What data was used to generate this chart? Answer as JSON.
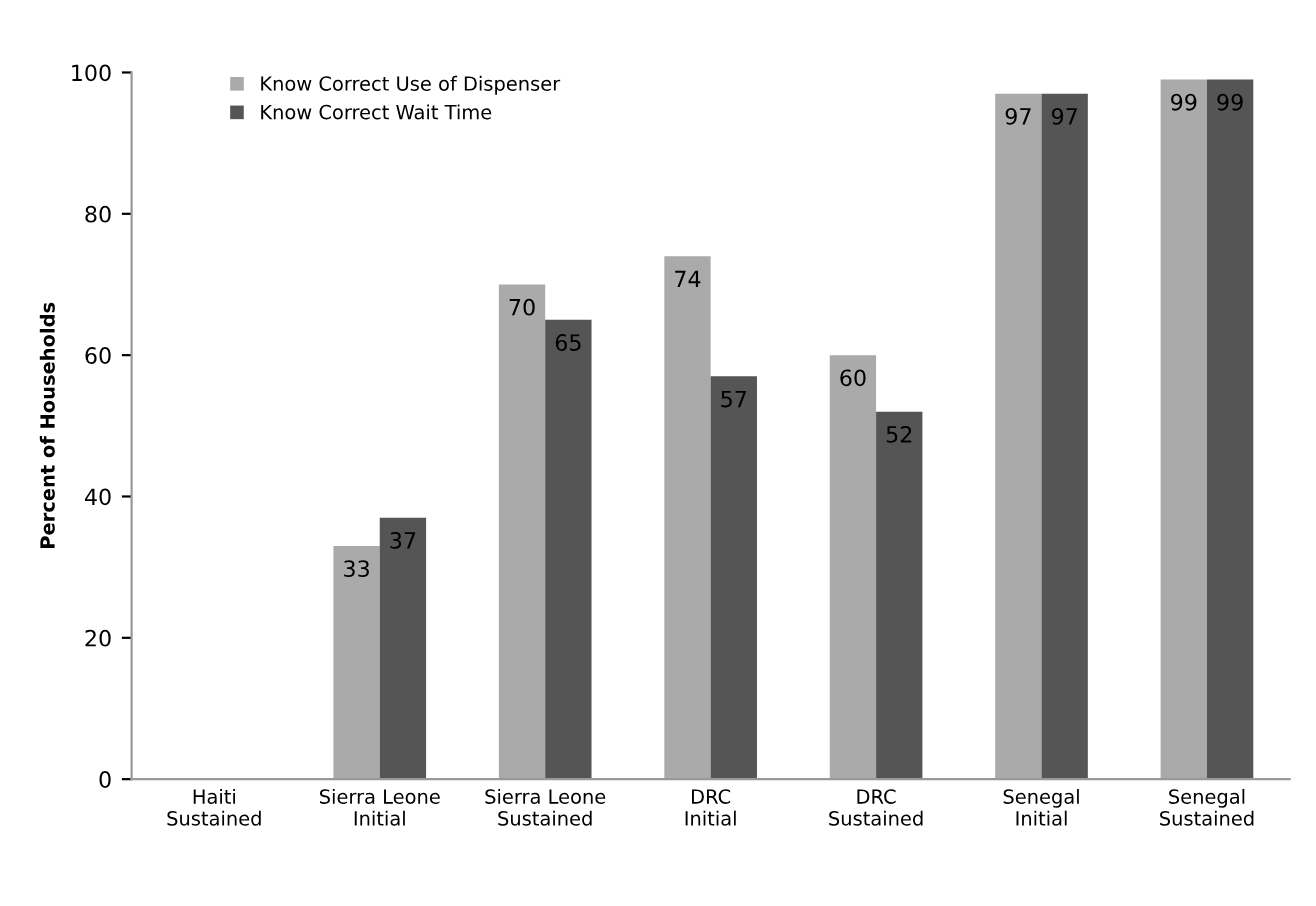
{
  "chart_data": {
    "type": "bar",
    "ylabel": "Percent of Households",
    "categories": [
      "Haiti\nSustained",
      "Sierra Leone\nInitial",
      "Sierra Leone\nSustained",
      "DRC\nInitial",
      "DRC\nSustained",
      "Senegal\nInitial",
      "Senegal\nSustained"
    ],
    "series": [
      {
        "name": "Know Correct Use of Dispenser",
        "color": "#aaaaaa",
        "values": [
          null,
          33,
          70,
          74,
          60,
          97,
          99
        ]
      },
      {
        "name": "Know Correct Wait Time",
        "color": "#555555",
        "values": [
          null,
          37,
          65,
          57,
          52,
          97,
          99
        ]
      }
    ],
    "ylim": [
      0,
      100
    ],
    "yticks": [
      0,
      20,
      40,
      60,
      80,
      100
    ],
    "grid": false,
    "legend": "top left",
    "data_labels": true
  }
}
